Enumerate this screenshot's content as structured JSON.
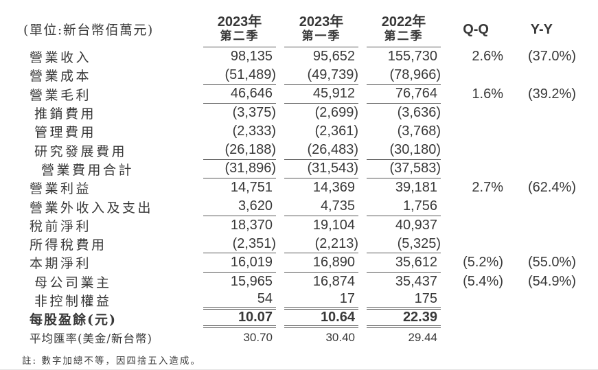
{
  "unit_label": "(單位:新台幣佰萬元)",
  "header": {
    "col1_year": "2023年",
    "col1_quarter": "第二季",
    "col2_year": "2023年",
    "col2_quarter": "第一季",
    "col3_year": "2022年",
    "col3_quarter": "第二季",
    "qq_label": "Q-Q",
    "yy_label": "Y-Y"
  },
  "rows": [
    {
      "label": "營業收入",
      "v1": "98,135",
      "v2": "95,652",
      "v3": "155,730",
      "qq": "2.6%",
      "yy": "(37.0%)"
    },
    {
      "label": "營業成本",
      "v1": "(51,489)",
      "v2": "(49,739)",
      "v3": "(78,966)"
    },
    {
      "label": "營業毛利",
      "v1": "46,646",
      "v2": "45,912",
      "v3": "76,764",
      "qq": "1.6%",
      "yy": "(39.2%)"
    },
    {
      "label": "推銷費用",
      "v1": "(3,375)",
      "v2": "(2,699)",
      "v3": "(3,636)"
    },
    {
      "label": "管理費用",
      "v1": "(2,333)",
      "v2": "(2,361)",
      "v3": "(3,768)"
    },
    {
      "label": "研究發展費用",
      "v1": "(26,188)",
      "v2": "(26,483)",
      "v3": "(30,180)"
    },
    {
      "label": "營業費用合計",
      "v1": "(31,896)",
      "v2": "(31,543)",
      "v3": "(37,583)"
    },
    {
      "label": "營業利益",
      "v1": "14,751",
      "v2": "14,369",
      "v3": "39,181",
      "qq": "2.7%",
      "yy": "(62.4%)"
    },
    {
      "label": "營業外收入及支出",
      "v1": "3,620",
      "v2": "4,735",
      "v3": "1,756"
    },
    {
      "label": "稅前淨利",
      "v1": "18,370",
      "v2": "19,104",
      "v3": "40,937"
    },
    {
      "label": "所得稅費用",
      "v1": "(2,351)",
      "v2": "(2,213)",
      "v3": "(5,325)"
    },
    {
      "label": "本期淨利",
      "v1": "16,019",
      "v2": "16,890",
      "v3": "35,612",
      "qq": "(5.2%)",
      "yy": "(55.0%)"
    },
    {
      "label": "母公司業主",
      "v1": "15,965",
      "v2": "16,874",
      "v3": "35,437",
      "qq": "(5.4%)",
      "yy": "(54.9%)"
    },
    {
      "label": "非控制權益",
      "v1": "54",
      "v2": "17",
      "v3": "175"
    },
    {
      "label": "每股盈餘(元)",
      "v1": "10.07",
      "v2": "10.64",
      "v3": "22.39"
    },
    {
      "label": "平均匯率(美金/新台幣)",
      "v1": "30.70",
      "v2": "30.40",
      "v3": "29.44"
    }
  ],
  "footnote": "註: 數字加總不等，因四捨五入造成。",
  "colors": {
    "text": "#383838",
    "rule": "#555555",
    "background": "#ffffff"
  }
}
